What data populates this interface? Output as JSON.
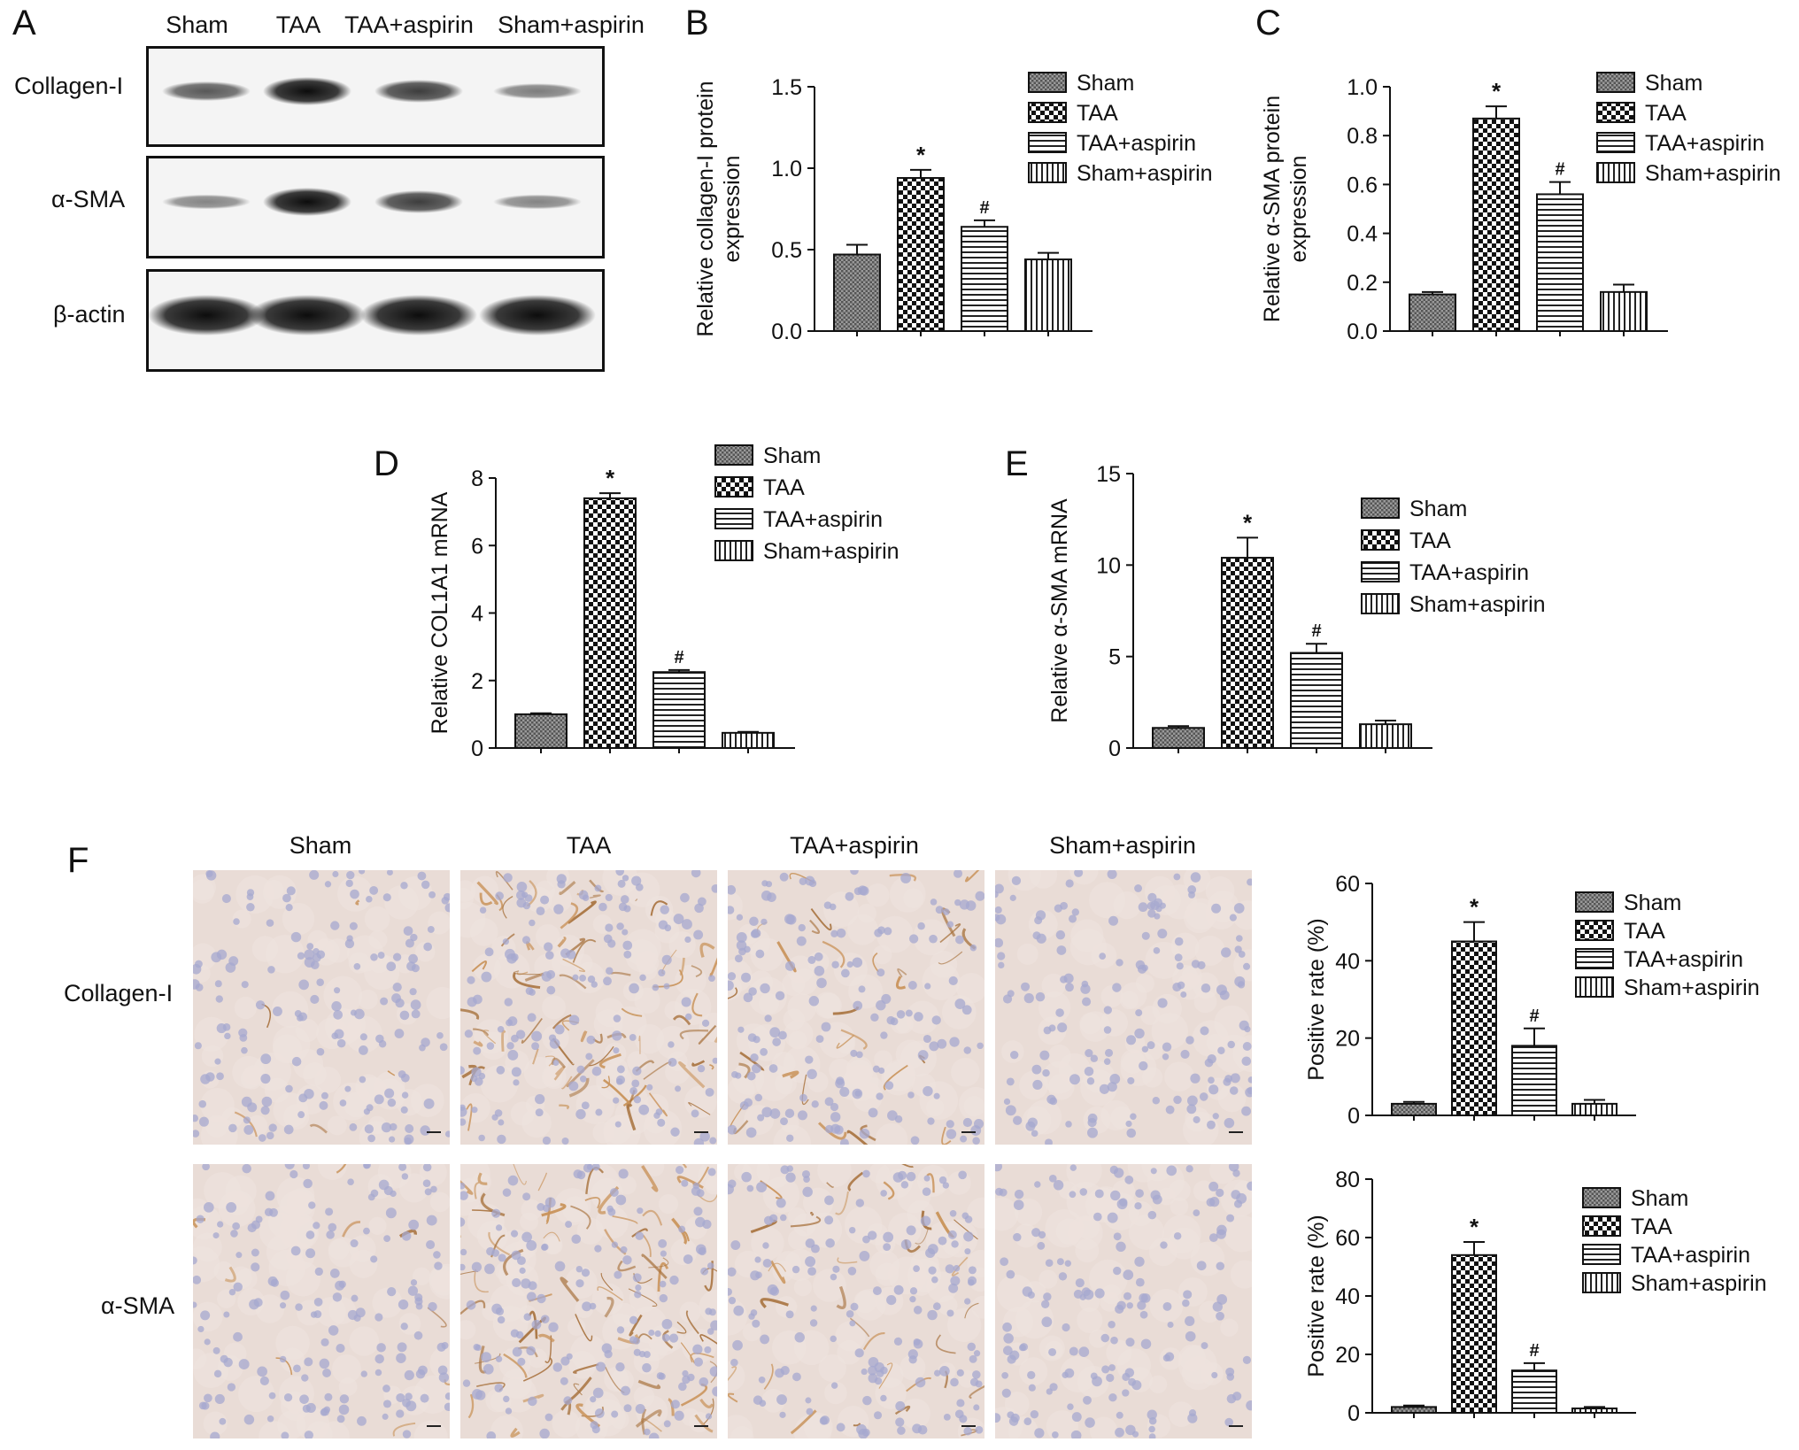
{
  "groups": [
    "Sham",
    "TAA",
    "TAA+aspirin",
    "Sham+aspirin"
  ],
  "panel_letters": {
    "A": "A",
    "B": "B",
    "C": "C",
    "D": "D",
    "E": "E",
    "F": "F"
  },
  "western_blot": {
    "lanes": [
      "Sham",
      "TAA",
      "TAA+aspirin",
      "Sham+aspirin"
    ],
    "rows": [
      {
        "label": "Collagen-I",
        "intensity": [
          0.55,
          1.0,
          0.72,
          0.35
        ]
      },
      {
        "label": "α-SMA",
        "intensity": [
          0.3,
          1.0,
          0.72,
          0.3
        ]
      },
      {
        "label": "β-actin",
        "intensity": [
          1.0,
          1.0,
          1.0,
          1.0
        ]
      }
    ]
  },
  "ihc": {
    "columns": [
      "Sham",
      "TAA",
      "TAA+aspirin",
      "Sham+aspirin"
    ],
    "rows": [
      "Collagen-I",
      "α-SMA"
    ]
  },
  "chart_data": [
    {
      "id": "B",
      "type": "bar",
      "categories": [
        "Sham",
        "TAA",
        "TAA+aspirin",
        "Sham+aspirin"
      ],
      "values": [
        0.47,
        0.94,
        0.64,
        0.44
      ],
      "errors": [
        0.06,
        0.05,
        0.04,
        0.04
      ],
      "annotations": [
        "",
        "*",
        "#",
        ""
      ],
      "ylabel": "Relative collagen-I protein expression",
      "ylabel_lines": [
        "Relative collagen-I protein",
        "expression"
      ],
      "ylim": [
        0,
        1.5
      ],
      "yticks": [
        0.0,
        0.5,
        1.0,
        1.5
      ],
      "ytick_labels": [
        "0.0",
        "0.5",
        "1.0",
        "1.5"
      ],
      "legend": [
        "Sham",
        "TAA",
        "TAA+aspirin",
        "Sham+aspirin"
      ],
      "grid": false,
      "legend_position": "top-right"
    },
    {
      "id": "C",
      "type": "bar",
      "categories": [
        "Sham",
        "TAA",
        "TAA+aspirin",
        "Sham+aspirin"
      ],
      "values": [
        0.15,
        0.87,
        0.56,
        0.16
      ],
      "errors": [
        0.01,
        0.05,
        0.05,
        0.03
      ],
      "annotations": [
        "",
        "*",
        "#",
        ""
      ],
      "ylabel": "Relative α-SMA protein expression",
      "ylabel_lines": [
        "Relative α-SMA protein",
        "expression"
      ],
      "ylim": [
        0,
        1.0
      ],
      "yticks": [
        0.0,
        0.2,
        0.4,
        0.6,
        0.8,
        1.0
      ],
      "ytick_labels": [
        "0.0",
        "0.2",
        "0.4",
        "0.6",
        "0.8",
        "1.0"
      ],
      "legend": [
        "Sham",
        "TAA",
        "TAA+aspirin",
        "Sham+aspirin"
      ],
      "grid": false,
      "legend_position": "top-right"
    },
    {
      "id": "D",
      "type": "bar",
      "categories": [
        "Sham",
        "TAA",
        "TAA+aspirin",
        "Sham+aspirin"
      ],
      "values": [
        1.0,
        7.4,
        2.25,
        0.45
      ],
      "errors": [
        0.03,
        0.15,
        0.06,
        0.03
      ],
      "annotations": [
        "",
        "*",
        "#",
        ""
      ],
      "ylabel": "Relative COL1A1 mRNA",
      "ylabel_lines": [
        "Relative COL1A1 mRNA"
      ],
      "ylim": [
        0,
        8
      ],
      "yticks": [
        0,
        2,
        4,
        6,
        8
      ],
      "ytick_labels": [
        "0",
        "2",
        "4",
        "6",
        "8"
      ],
      "legend": [
        "Sham",
        "TAA",
        "TAA+aspirin",
        "Sham+aspirin"
      ],
      "grid": false,
      "legend_position": "top-right"
    },
    {
      "id": "E",
      "type": "bar",
      "categories": [
        "Sham",
        "TAA",
        "TAA+aspirin",
        "Sham+aspirin"
      ],
      "values": [
        1.1,
        10.4,
        5.2,
        1.3
      ],
      "errors": [
        0.1,
        1.1,
        0.5,
        0.2
      ],
      "annotations": [
        "",
        "*",
        "#",
        ""
      ],
      "ylabel": "Relative α-SMA mRNA",
      "ylabel_lines": [
        "Relative α-SMA mRNA"
      ],
      "ylim": [
        0,
        15
      ],
      "yticks": [
        0,
        5,
        10,
        15
      ],
      "ytick_labels": [
        "0",
        "5",
        "10",
        "15"
      ],
      "legend": [
        "Sham",
        "TAA",
        "TAA+aspirin",
        "Sham+aspirin"
      ],
      "grid": false,
      "legend_position": "top-right"
    },
    {
      "id": "F-collagen",
      "type": "bar",
      "categories": [
        "Sham",
        "TAA",
        "TAA+aspirin",
        "Sham+aspirin"
      ],
      "values": [
        3,
        45,
        18,
        3
      ],
      "errors": [
        0.5,
        5,
        4.5,
        1
      ],
      "annotations": [
        "",
        "*",
        "#",
        ""
      ],
      "ylabel": "Positive rate (%)",
      "ylabel_lines": [
        "Positive rate (%)"
      ],
      "ylim": [
        0,
        60
      ],
      "yticks": [
        0,
        20,
        40,
        60
      ],
      "ytick_labels": [
        "0",
        "20",
        "40",
        "60"
      ],
      "legend": [
        "Sham",
        "TAA",
        "TAA+aspirin",
        "Sham+aspirin"
      ],
      "grid": false,
      "legend_position": "top-right"
    },
    {
      "id": "F-asma",
      "type": "bar",
      "categories": [
        "Sham",
        "TAA",
        "TAA+aspirin",
        "Sham+aspirin"
      ],
      "values": [
        2,
        54,
        14.5,
        1.5
      ],
      "errors": [
        0.5,
        4.5,
        2.5,
        0.5
      ],
      "annotations": [
        "",
        "*",
        "#",
        ""
      ],
      "ylabel": "Positive rate (%)",
      "ylabel_lines": [
        "Positive rate (%)"
      ],
      "ylim": [
        0,
        80
      ],
      "yticks": [
        0,
        20,
        40,
        60,
        80
      ],
      "ytick_labels": [
        "0",
        "20",
        "40",
        "60",
        "80"
      ],
      "legend": [
        "Sham",
        "TAA",
        "TAA+aspirin",
        "Sham+aspirin"
      ],
      "grid": false,
      "legend_position": "top-right"
    }
  ]
}
